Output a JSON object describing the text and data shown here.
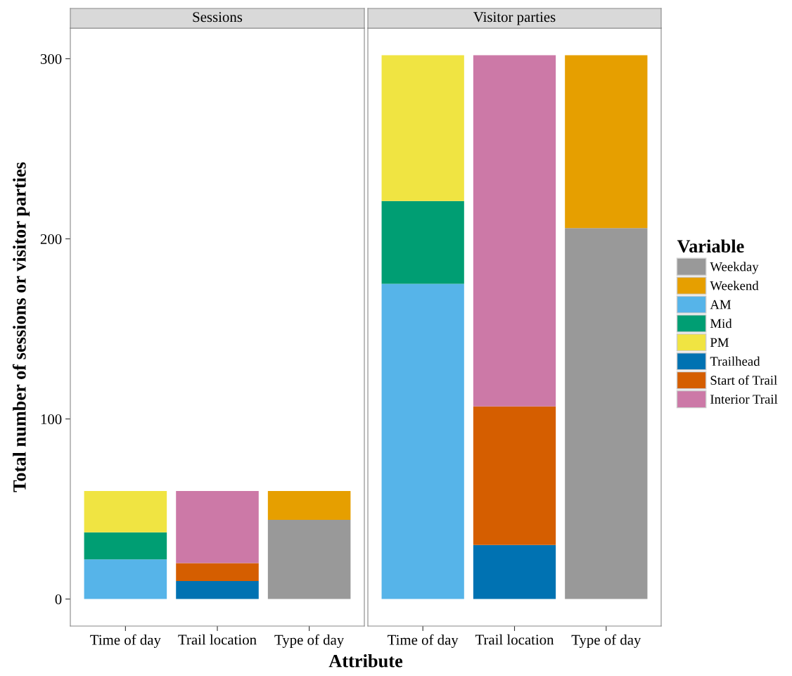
{
  "chart_data": [
    {
      "type": "bar",
      "stacked": true,
      "title": "Sessions",
      "xlabel": "Attribute",
      "ylabel": "Total number of sessions or visitor parties",
      "categories": [
        "Time of day",
        "Trail location",
        "Type of day"
      ],
      "ylim": [
        -15,
        317
      ],
      "yticks": [
        0,
        100,
        200,
        300
      ],
      "grid": false,
      "series": [
        {
          "color": "#999999",
          "values": [
            null,
            null,
            44
          ]
        },
        {
          "color": "#e69f00",
          "values": [
            null,
            null,
            16
          ]
        },
        {
          "color": "#56b4e9",
          "values": [
            22,
            null,
            null
          ]
        },
        {
          "color": "#009e73",
          "values": [
            15,
            null,
            null
          ]
        },
        {
          "color": "#f0e442",
          "values": [
            23,
            null,
            null
          ]
        },
        {
          "color": "#0072b2",
          "values": [
            null,
            10,
            null
          ]
        },
        {
          "color": "#d55e00",
          "values": [
            null,
            10,
            null
          ]
        },
        {
          "color": "#cc79a7",
          "values": [
            null,
            40,
            null
          ]
        }
      ]
    },
    {
      "type": "bar",
      "stacked": true,
      "title": "Visitor parties",
      "legend_title": "Variable",
      "legend": "right",
      "tick_labels": "x",
      "categories": [
        "Time of day",
        "Trail location",
        "Type of day"
      ],
      "ylim": [
        -15,
        317
      ],
      "yticks": [
        0,
        100,
        200,
        300
      ],
      "grid": false,
      "series": [
        {
          "name": "Weekday",
          "color": "#999999",
          "values": [
            null,
            null,
            206
          ]
        },
        {
          "name": "Weekend",
          "color": "#e69f00",
          "values": [
            null,
            null,
            96
          ]
        },
        {
          "name": "AM",
          "color": "#56b4e9",
          "values": [
            175,
            null,
            null
          ]
        },
        {
          "name": "Mid",
          "color": "#009e73",
          "values": [
            46,
            null,
            null
          ]
        },
        {
          "name": "PM",
          "color": "#f0e442",
          "values": [
            81,
            null,
            null
          ]
        },
        {
          "name": "Trailhead",
          "color": "#0072b2",
          "values": [
            null,
            30,
            null
          ]
        },
        {
          "name": "Start of Trail",
          "color": "#d55e00",
          "values": [
            null,
            77,
            null
          ]
        },
        {
          "name": "Interior Trail",
          "color": "#cc79a7",
          "values": [
            null,
            195,
            null
          ]
        }
      ]
    }
  ]
}
